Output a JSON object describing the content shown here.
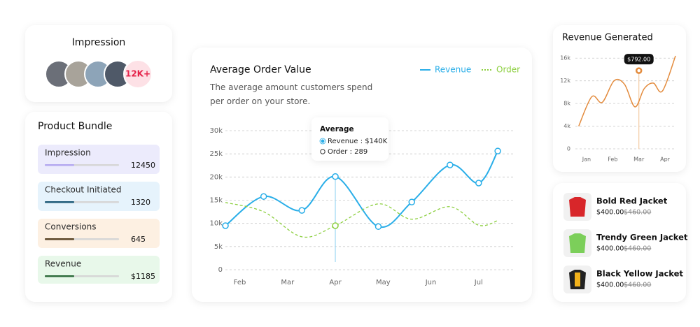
{
  "impression": {
    "title": "Impression",
    "badge": "12K+"
  },
  "product_bundle": {
    "title": "Product Bundle",
    "items": [
      {
        "label": "Impression",
        "value": 12450
      },
      {
        "label": "Checkout Initiated",
        "value": 1320
      },
      {
        "label": "Conversions",
        "value": 645
      },
      {
        "label": "Revenue",
        "value": "$1185"
      }
    ]
  },
  "chart_data": [
    {
      "type": "line",
      "title": "Average Order Value",
      "subtitle": "The average amount customers spend per order on your store.",
      "x": [
        0.7,
        1.5,
        2.3,
        3.0,
        3.9,
        4.6,
        5.4,
        6.0,
        6.4
      ],
      "xlim": [
        0.45,
        6.75
      ],
      "xticks": [
        {
          "value": 1,
          "label": "Feb"
        },
        {
          "value": 2,
          "label": "Mar"
        },
        {
          "value": 3,
          "label": "Apr"
        },
        {
          "value": 4,
          "label": "May"
        },
        {
          "value": 5,
          "label": "Jun"
        },
        {
          "value": 6,
          "label": "Jul"
        }
      ],
      "ylim": [
        0,
        30000
      ],
      "yticks": [
        0,
        {
          "value": 5000,
          "label": "5k"
        },
        {
          "value": 10000,
          "label": "10k"
        },
        {
          "value": 15000,
          "label": "15k"
        },
        {
          "value": 20000,
          "label": "20k"
        },
        {
          "value": 25000,
          "label": "25k"
        },
        {
          "value": 30000,
          "label": "30k"
        }
      ],
      "grid": true,
      "legend": "top-right",
      "series": [
        {
          "name": "Revenue",
          "color": "#2aaee8",
          "values": [
            9500,
            15800,
            12800,
            20100,
            9300,
            14600,
            22600,
            18700,
            25600
          ]
        },
        {
          "name": "Order",
          "color": "#8ccf3f",
          "dashed": true,
          "values": [
            14500,
            12500,
            7100,
            9500,
            14200,
            10900,
            13600,
            9600,
            10600
          ]
        }
      ],
      "highlight_index": 3,
      "tooltip": {
        "title": "Average",
        "lines": [
          "Revenue : $140K",
          "Order : 289"
        ]
      }
    },
    {
      "type": "line",
      "title": "Revenue Generated",
      "x": [
        0.7,
        1.2,
        1.6,
        2.05,
        2.45,
        2.85,
        3.2,
        3.55,
        3.9,
        4.4
      ],
      "xlim": [
        0.68,
        4.4
      ],
      "xticks": [
        {
          "value": 1,
          "label": "Jan"
        },
        {
          "value": 2,
          "label": "Feb"
        },
        {
          "value": 3,
          "label": "Mar"
        },
        {
          "value": 4,
          "label": "Apr"
        }
      ],
      "ylim": [
        0,
        16400
      ],
      "yticks": [
        0,
        {
          "value": 4000,
          "label": "4k"
        },
        {
          "value": 8000,
          "label": "8k"
        },
        {
          "value": 12000,
          "label": "12k"
        },
        {
          "value": 16000,
          "label": "16k"
        }
      ],
      "grid": true,
      "series": [
        {
          "name": "Revenue",
          "color": "#e38b3d",
          "values": [
            4000,
            9200,
            8200,
            12000,
            11400,
            7400,
            10600,
            11600,
            10200,
            16400
          ]
        }
      ],
      "marker": {
        "x": 3.0,
        "y": 13800
      },
      "tooltip": "$792.00"
    }
  ],
  "products": {
    "items": [
      {
        "name": "Bold Red Jacket",
        "price": "$400.00",
        "old_price": "$460.00"
      },
      {
        "name": "Trendy Green Jacket",
        "price": "$400.00",
        "old_price": "$460.00"
      },
      {
        "name": "Black Yellow Jacket",
        "price": "$400.00",
        "old_price": "$460.00"
      }
    ]
  }
}
